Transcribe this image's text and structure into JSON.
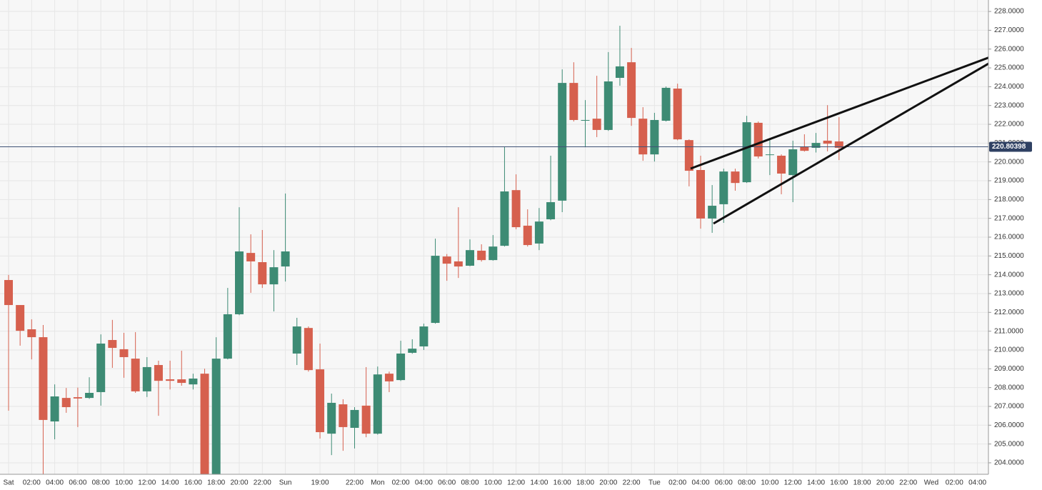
{
  "chart_data": {
    "type": "candlestick",
    "categories": [
      "Sat",
      null,
      "02:00",
      null,
      "04:00",
      null,
      "06:00",
      null,
      "08:00",
      null,
      "10:00",
      null,
      "12:00",
      null,
      "14:00",
      null,
      "16:00",
      null,
      "18:00",
      null,
      "20:00",
      null,
      "22:00",
      null,
      "Sun",
      null,
      null,
      "19:00",
      null,
      null,
      "22:00",
      null,
      "Mon",
      null,
      "02:00",
      null,
      "04:00",
      null,
      "06:00",
      null,
      "08:00",
      null,
      "10:00",
      null,
      "12:00",
      null,
      "14:00",
      null,
      "16:00",
      null,
      "18:00",
      null,
      "20:00",
      null,
      "22:00",
      null,
      "Tue",
      null,
      "02:00",
      null,
      "04:00",
      null,
      "06:00",
      null,
      "08:00",
      null,
      "10:00",
      null,
      "12:00",
      null,
      "14:00",
      null,
      "16:00",
      null,
      "18:00",
      null,
      "20:00",
      null,
      "22:00",
      null,
      "Wed",
      null,
      "02:00",
      null,
      "04:00",
      null
    ],
    "open": [
      213.72,
      212.39,
      211.1,
      210.68,
      206.2,
      207.45,
      207.49,
      207.45,
      207.76,
      210.53,
      210.04,
      209.54,
      207.8,
      209.2,
      208.44,
      208.44,
      208.17,
      208.74,
      203.2,
      209.54,
      211.9,
      215.16,
      214.67,
      213.49,
      214.44,
      209.81,
      211.17,
      208.97,
      205.55,
      207.11,
      205.86,
      207.04,
      205.55,
      208.74,
      208.4,
      209.85,
      210.19,
      211.44,
      214.97,
      214.71,
      214.48,
      215.28,
      214.78,
      215.54,
      218.5,
      216.61,
      215.66,
      216.95,
      217.94,
      224.2,
      222.19,
      222.3,
      221.7,
      224.47,
      225.3,
      222.3,
      220.4,
      222.19,
      223.9,
      221.16,
      219.57,
      216.99,
      217.75,
      219.49,
      218.92,
      222.08,
      220.37,
      220.33,
      219.3,
      220.82,
      220.75,
      221.13,
      221.09,
      null,
      null,
      null,
      null,
      null,
      null,
      null,
      null,
      null,
      null,
      null,
      null,
      null
    ],
    "high": [
      213.99,
      212.39,
      211.63,
      211.33,
      208.17,
      207.98,
      208.0,
      208.55,
      210.83,
      211.6,
      210.91,
      210.95,
      209.62,
      209.43,
      209.43,
      209.96,
      208.74,
      209.0,
      210.68,
      213.3,
      217.59,
      216.15,
      216.38,
      215.31,
      218.32,
      211.71,
      211.25,
      210.34,
      207.68,
      207.38,
      206.96,
      209.09,
      209.12,
      208.85,
      210.49,
      210.57,
      211.4,
      215.92,
      215.1,
      217.59,
      215.88,
      215.62,
      216.11,
      220.82,
      219.34,
      217.48,
      217.55,
      220.33,
      224.92,
      225.3,
      223.29,
      224.58,
      225.84,
      227.24,
      226.06,
      222.91,
      222.61,
      224.01,
      224.16,
      221.2,
      220.33,
      218.77,
      219.64,
      219.64,
      222.45,
      222.15,
      221.16,
      220.4,
      221.13,
      221.47,
      221.54,
      223.02,
      222.38,
      null,
      null,
      null,
      null,
      null,
      null,
      null,
      null,
      null,
      null,
      null,
      null,
      null
    ],
    "low": [
      206.77,
      210.23,
      209.5,
      203.4,
      205.25,
      206.66,
      205.9,
      207.4,
      207.04,
      209.05,
      208.52,
      207.72,
      207.5,
      206.5,
      207.9,
      208.1,
      207.9,
      203.0,
      203.0,
      209.5,
      211.85,
      213.04,
      213.3,
      212.05,
      213.64,
      209.2,
      208.85,
      205.29,
      204.41,
      204.64,
      204.76,
      205.36,
      205.5,
      207.76,
      208.35,
      209.8,
      210.0,
      211.4,
      213.68,
      213.83,
      214.45,
      214.7,
      214.75,
      215.5,
      216.42,
      215.5,
      215.31,
      216.9,
      217.33,
      222.15,
      220.78,
      221.32,
      221.65,
      224.05,
      221.92,
      220.06,
      220.02,
      222.15,
      221.15,
      218.7,
      216.45,
      216.23,
      216.76,
      218.47,
      218.88,
      220.18,
      219.3,
      218.28,
      217.86,
      220.55,
      220.5,
      220.56,
      220.1,
      null,
      null,
      null,
      null,
      null,
      null,
      null,
      null,
      null,
      null,
      null,
      null,
      null
    ],
    "close": [
      212.39,
      211.02,
      210.68,
      206.28,
      207.53,
      206.96,
      207.42,
      207.72,
      210.34,
      210.11,
      209.62,
      207.8,
      209.09,
      208.36,
      208.36,
      208.25,
      208.48,
      203.2,
      209.54,
      211.9,
      215.24,
      214.71,
      213.49,
      214.4,
      215.24,
      211.25,
      208.93,
      205.63,
      207.19,
      205.9,
      206.81,
      205.55,
      208.7,
      208.33,
      209.81,
      210.07,
      211.25,
      215.01,
      214.59,
      214.44,
      215.31,
      214.78,
      215.5,
      218.43,
      216.53,
      215.58,
      216.83,
      217.86,
      224.2,
      222.23,
      222.23,
      221.7,
      224.28,
      225.08,
      222.34,
      220.4,
      222.23,
      223.94,
      221.2,
      219.53,
      216.99,
      217.67,
      219.49,
      218.88,
      222.11,
      220.29,
      220.4,
      219.38,
      220.67,
      220.59,
      221.01,
      220.97,
      220.75,
      null,
      null,
      null,
      null,
      null,
      null,
      null,
      null,
      null,
      null,
      null,
      null,
      null
    ],
    "up_color": "#3d8b74",
    "down_color": "#d6604e",
    "ylim": [
      203.39,
      228.61
    ],
    "yticks": [
      {
        "value": 204,
        "label": "204.0000"
      },
      {
        "value": 205,
        "label": "205.0000"
      },
      {
        "value": 206,
        "label": "206.0000"
      },
      {
        "value": 207,
        "label": "207.0000"
      },
      {
        "value": 208,
        "label": "208.0000"
      },
      {
        "value": 209,
        "label": "209.0000"
      },
      {
        "value": 210,
        "label": "210.0000"
      },
      {
        "value": 211,
        "label": "211.0000"
      },
      {
        "value": 212,
        "label": "212.0000"
      },
      {
        "value": 213,
        "label": "213.0000"
      },
      {
        "value": 214,
        "label": "214.0000"
      },
      {
        "value": 215,
        "label": "215.0000"
      },
      {
        "value": 216,
        "label": "216.0000"
      },
      {
        "value": 217,
        "label": "217.0000"
      },
      {
        "value": 218,
        "label": "218.0000"
      },
      {
        "value": 219,
        "label": "219.0000"
      },
      {
        "value": 220,
        "label": "220.0000"
      },
      {
        "value": 221,
        "label": "221.0000"
      },
      {
        "value": 222,
        "label": "222.0000"
      },
      {
        "value": 223,
        "label": "223.0000"
      },
      {
        "value": 224,
        "label": "224.0000"
      },
      {
        "value": 225,
        "label": "225.0000"
      },
      {
        "value": 226,
        "label": "226.0000"
      },
      {
        "value": 227,
        "label": "227.0000"
      },
      {
        "value": 228,
        "label": "228.0000"
      }
    ],
    "last_price": 220.80398,
    "grid": true
  }
}
